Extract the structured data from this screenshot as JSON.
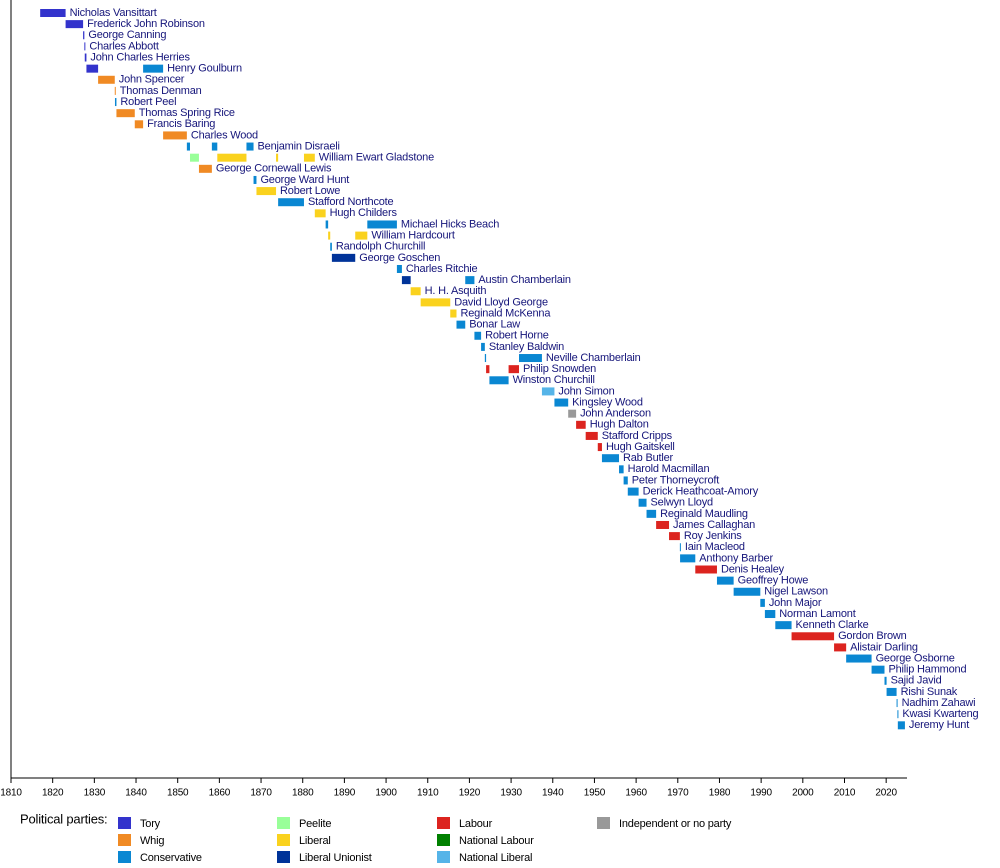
{
  "chart_data": {
    "type": "timeline",
    "xlim": [
      1810,
      2025
    ],
    "xticks": [
      1810,
      1820,
      1830,
      1840,
      1850,
      1860,
      1870,
      1880,
      1890,
      1900,
      1910,
      1920,
      1930,
      1940,
      1950,
      1960,
      1970,
      1980,
      1990,
      2000,
      2010,
      2020
    ],
    "legend_title": "Political parties:",
    "parties": [
      {
        "name": "Tory",
        "color": "#3333cc"
      },
      {
        "name": "Whig",
        "color": "#f08a24"
      },
      {
        "name": "Conservative",
        "color": "#0a87d2"
      },
      {
        "name": "Peelite",
        "color": "#99ff99"
      },
      {
        "name": "Liberal",
        "color": "#fad21e"
      },
      {
        "name": "Liberal Unionist",
        "color": "#003399"
      },
      {
        "name": "Labour",
        "color": "#dc241f"
      },
      {
        "name": "National Labour",
        "color": "#008000"
      },
      {
        "name": "National Liberal",
        "color": "#55b4e8"
      },
      {
        "name": "Independent or no party",
        "color": "#999999"
      }
    ],
    "rows": [
      {
        "name": "Nicholas Vansittart",
        "terms": [
          {
            "start": 1817.0,
            "end": 1823.1,
            "color": "#3333cc"
          }
        ]
      },
      {
        "name": "Frederick John Robinson",
        "terms": [
          {
            "start": 1823.1,
            "end": 1827.3,
            "color": "#3333cc"
          }
        ]
      },
      {
        "name": "George Canning",
        "terms": [
          {
            "start": 1827.3,
            "end": 1827.6,
            "color": "#3333cc"
          }
        ]
      },
      {
        "name": "Charles Abbott",
        "terms": [
          {
            "start": 1827.6,
            "end": 1827.7,
            "color": "#3333cc"
          }
        ]
      },
      {
        "name": "John Charles Herries",
        "terms": [
          {
            "start": 1827.7,
            "end": 1828.1,
            "color": "#3333cc"
          }
        ]
      },
      {
        "name": "Henry Goulburn",
        "terms": [
          {
            "start": 1828.1,
            "end": 1830.9,
            "color": "#3333cc"
          },
          {
            "start": 1841.7,
            "end": 1846.5,
            "color": "#0a87d2"
          }
        ]
      },
      {
        "name": "John Spencer",
        "terms": [
          {
            "start": 1830.9,
            "end": 1834.9,
            "color": "#f08a24"
          }
        ]
      },
      {
        "name": "Thomas Denman",
        "terms": [
          {
            "start": 1834.9,
            "end": 1834.95,
            "color": "#f08a24"
          }
        ]
      },
      {
        "name": "Robert Peel",
        "terms": [
          {
            "start": 1834.95,
            "end": 1835.3,
            "color": "#0a87d2"
          }
        ]
      },
      {
        "name": "Thomas Spring Rice",
        "terms": [
          {
            "start": 1835.3,
            "end": 1839.7,
            "color": "#f08a24"
          }
        ]
      },
      {
        "name": "Francis Baring",
        "terms": [
          {
            "start": 1839.7,
            "end": 1841.7,
            "color": "#f08a24"
          }
        ]
      },
      {
        "name": "Charles Wood",
        "terms": [
          {
            "start": 1846.5,
            "end": 1852.2,
            "color": "#f08a24"
          }
        ]
      },
      {
        "name": "Benjamin Disraeli",
        "terms": [
          {
            "start": 1852.2,
            "end": 1852.95,
            "color": "#0a87d2"
          },
          {
            "start": 1858.2,
            "end": 1859.5,
            "color": "#0a87d2"
          },
          {
            "start": 1866.5,
            "end": 1868.2,
            "color": "#0a87d2"
          }
        ]
      },
      {
        "name": "William Ewart Gladstone",
        "terms": [
          {
            "start": 1852.95,
            "end": 1855.1,
            "color": "#99ff99"
          },
          {
            "start": 1859.5,
            "end": 1866.5,
            "color": "#fad21e"
          },
          {
            "start": 1873.6,
            "end": 1874.1,
            "color": "#fad21e"
          },
          {
            "start": 1880.3,
            "end": 1882.9,
            "color": "#fad21e"
          }
        ]
      },
      {
        "name": "George Cornewall Lewis",
        "terms": [
          {
            "start": 1855.1,
            "end": 1858.2,
            "color": "#f08a24"
          }
        ]
      },
      {
        "name": "George Ward Hunt",
        "terms": [
          {
            "start": 1868.2,
            "end": 1868.9,
            "color": "#0a87d2"
          }
        ]
      },
      {
        "name": "Robert Lowe",
        "terms": [
          {
            "start": 1868.9,
            "end": 1873.6,
            "color": "#fad21e"
          }
        ]
      },
      {
        "name": "Stafford Northcote",
        "terms": [
          {
            "start": 1874.1,
            "end": 1880.3,
            "color": "#0a87d2"
          }
        ]
      },
      {
        "name": "Hugh Childers",
        "terms": [
          {
            "start": 1882.9,
            "end": 1885.5,
            "color": "#fad21e"
          }
        ]
      },
      {
        "name": "Michael Hicks Beach",
        "terms": [
          {
            "start": 1885.5,
            "end": 1886.1,
            "color": "#0a87d2"
          },
          {
            "start": 1895.5,
            "end": 1902.6,
            "color": "#0a87d2"
          }
        ]
      },
      {
        "name": "William Hardcourt",
        "terms": [
          {
            "start": 1886.1,
            "end": 1886.6,
            "color": "#fad21e"
          },
          {
            "start": 1892.6,
            "end": 1895.5,
            "color": "#fad21e"
          }
        ]
      },
      {
        "name": "Randolph Churchill",
        "terms": [
          {
            "start": 1886.6,
            "end": 1887.0,
            "color": "#0a87d2"
          }
        ]
      },
      {
        "name": "George Goschen",
        "terms": [
          {
            "start": 1887.0,
            "end": 1892.6,
            "color": "#003399"
          }
        ]
      },
      {
        "name": "Charles Ritchie",
        "terms": [
          {
            "start": 1902.6,
            "end": 1903.8,
            "color": "#0a87d2"
          }
        ]
      },
      {
        "name": "Austin Chamberlain",
        "terms": [
          {
            "start": 1903.8,
            "end": 1905.9,
            "color": "#003399"
          },
          {
            "start": 1919.0,
            "end": 1921.2,
            "color": "#0a87d2"
          }
        ]
      },
      {
        "name": "H. H. Asquith",
        "terms": [
          {
            "start": 1905.9,
            "end": 1908.3,
            "color": "#fad21e"
          }
        ]
      },
      {
        "name": "David Lloyd George",
        "terms": [
          {
            "start": 1908.3,
            "end": 1915.4,
            "color": "#fad21e"
          }
        ]
      },
      {
        "name": "Reginald McKenna",
        "terms": [
          {
            "start": 1915.4,
            "end": 1916.9,
            "color": "#fad21e"
          }
        ]
      },
      {
        "name": "Bonar Law",
        "terms": [
          {
            "start": 1916.9,
            "end": 1919.0,
            "color": "#0a87d2"
          }
        ]
      },
      {
        "name": "Robert Horne",
        "terms": [
          {
            "start": 1921.2,
            "end": 1922.8,
            "color": "#0a87d2"
          }
        ]
      },
      {
        "name": "Stanley Baldwin",
        "terms": [
          {
            "start": 1922.8,
            "end": 1923.7,
            "color": "#0a87d2"
          }
        ]
      },
      {
        "name": "Neville Chamberlain",
        "terms": [
          {
            "start": 1923.7,
            "end": 1924.0,
            "color": "#0a87d2"
          },
          {
            "start": 1931.9,
            "end": 1937.4,
            "color": "#0a87d2"
          }
        ]
      },
      {
        "name": "Philip Snowden",
        "terms": [
          {
            "start": 1924.0,
            "end": 1924.8,
            "color": "#dc241f"
          },
          {
            "start": 1929.4,
            "end": 1931.9,
            "color": "#dc241f"
          }
        ]
      },
      {
        "name": "Winston Churchill",
        "terms": [
          {
            "start": 1924.8,
            "end": 1929.4,
            "color": "#0a87d2"
          }
        ]
      },
      {
        "name": "John Simon",
        "terms": [
          {
            "start": 1937.4,
            "end": 1940.4,
            "color": "#55b4e8"
          }
        ]
      },
      {
        "name": "Kingsley Wood",
        "terms": [
          {
            "start": 1940.4,
            "end": 1943.7,
            "color": "#0a87d2"
          }
        ]
      },
      {
        "name": "John Anderson",
        "terms": [
          {
            "start": 1943.7,
            "end": 1945.6,
            "color": "#999999"
          }
        ]
      },
      {
        "name": "Hugh Dalton",
        "terms": [
          {
            "start": 1945.6,
            "end": 1947.9,
            "color": "#dc241f"
          }
        ]
      },
      {
        "name": "Stafford Cripps",
        "terms": [
          {
            "start": 1947.9,
            "end": 1950.8,
            "color": "#dc241f"
          }
        ]
      },
      {
        "name": "Hugh Gaitskell",
        "terms": [
          {
            "start": 1950.8,
            "end": 1951.8,
            "color": "#dc241f"
          }
        ]
      },
      {
        "name": "Rab Butler",
        "terms": [
          {
            "start": 1951.8,
            "end": 1955.9,
            "color": "#0a87d2"
          }
        ]
      },
      {
        "name": "Harold Macmillan",
        "terms": [
          {
            "start": 1955.9,
            "end": 1957.0,
            "color": "#0a87d2"
          }
        ]
      },
      {
        "name": "Peter Thorneycroft",
        "terms": [
          {
            "start": 1957.0,
            "end": 1958.0,
            "color": "#0a87d2"
          }
        ]
      },
      {
        "name": "Derick Heathcoat-Amory",
        "terms": [
          {
            "start": 1958.0,
            "end": 1960.6,
            "color": "#0a87d2"
          }
        ]
      },
      {
        "name": "Selwyn Lloyd",
        "terms": [
          {
            "start": 1960.6,
            "end": 1962.5,
            "color": "#0a87d2"
          }
        ]
      },
      {
        "name": "Reginald Maudling",
        "terms": [
          {
            "start": 1962.5,
            "end": 1964.8,
            "color": "#0a87d2"
          }
        ]
      },
      {
        "name": "James Callaghan",
        "terms": [
          {
            "start": 1964.8,
            "end": 1967.9,
            "color": "#dc241f"
          }
        ]
      },
      {
        "name": "Roy Jenkins",
        "terms": [
          {
            "start": 1967.9,
            "end": 1970.5,
            "color": "#dc241f"
          }
        ]
      },
      {
        "name": "Iain Macleod",
        "terms": [
          {
            "start": 1970.5,
            "end": 1970.55,
            "color": "#0a87d2"
          }
        ]
      },
      {
        "name": "Anthony Barber",
        "terms": [
          {
            "start": 1970.55,
            "end": 1974.2,
            "color": "#0a87d2"
          }
        ]
      },
      {
        "name": "Denis Healey",
        "terms": [
          {
            "start": 1974.2,
            "end": 1979.4,
            "color": "#dc241f"
          }
        ]
      },
      {
        "name": "Geoffrey Howe",
        "terms": [
          {
            "start": 1979.4,
            "end": 1983.4,
            "color": "#0a87d2"
          }
        ]
      },
      {
        "name": "Nigel Lawson",
        "terms": [
          {
            "start": 1983.4,
            "end": 1989.8,
            "color": "#0a87d2"
          }
        ]
      },
      {
        "name": "John Major",
        "terms": [
          {
            "start": 1989.8,
            "end": 1990.9,
            "color": "#0a87d2"
          }
        ]
      },
      {
        "name": "Norman Lamont",
        "terms": [
          {
            "start": 1990.9,
            "end": 1993.4,
            "color": "#0a87d2"
          }
        ]
      },
      {
        "name": "Kenneth Clarke",
        "terms": [
          {
            "start": 1993.4,
            "end": 1997.3,
            "color": "#0a87d2"
          }
        ]
      },
      {
        "name": "Gordon Brown",
        "terms": [
          {
            "start": 1997.3,
            "end": 2007.5,
            "color": "#dc241f"
          }
        ]
      },
      {
        "name": "Alistair Darling",
        "terms": [
          {
            "start": 2007.5,
            "end": 2010.4,
            "color": "#dc241f"
          }
        ]
      },
      {
        "name": "George Osborne",
        "terms": [
          {
            "start": 2010.4,
            "end": 2016.5,
            "color": "#0a87d2"
          }
        ]
      },
      {
        "name": "Philip Hammond",
        "terms": [
          {
            "start": 2016.5,
            "end": 2019.6,
            "color": "#0a87d2"
          }
        ]
      },
      {
        "name": "Sajid Javid",
        "terms": [
          {
            "start": 2019.6,
            "end": 2020.1,
            "color": "#0a87d2"
          }
        ]
      },
      {
        "name": "Rishi Sunak",
        "terms": [
          {
            "start": 2020.1,
            "end": 2022.5,
            "color": "#0a87d2"
          }
        ]
      },
      {
        "name": "Nadhim Zahawi",
        "terms": [
          {
            "start": 2022.5,
            "end": 2022.7,
            "color": "#0a87d2"
          }
        ]
      },
      {
        "name": "Kwasi Kwarteng",
        "terms": [
          {
            "start": 2022.7,
            "end": 2022.8,
            "color": "#0a87d2"
          }
        ]
      },
      {
        "name": "Jeremy Hunt",
        "terms": [
          {
            "start": 2022.8,
            "end": 2024.5,
            "color": "#0a87d2"
          }
        ]
      }
    ]
  }
}
